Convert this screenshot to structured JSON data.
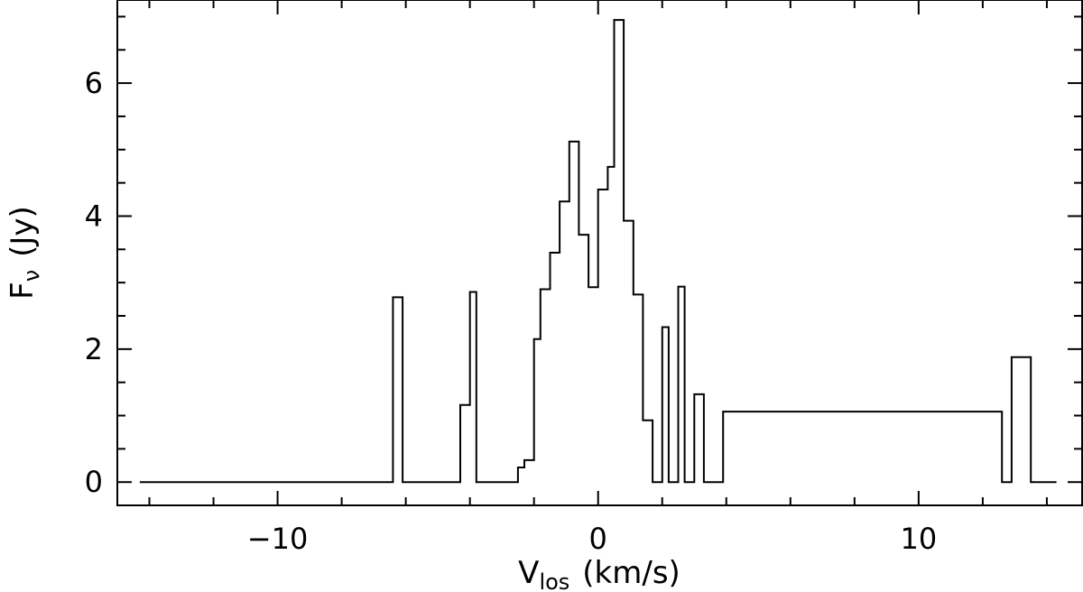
{
  "chart_data": {
    "type": "line",
    "style": "step histogram",
    "xlabel_main": "V",
    "xlabel_sub": "los",
    "xlabel_units": "(km/s)",
    "ylabel_main": "F",
    "ylabel_sub": "ν",
    "ylabel_units": "(Jy)",
    "xlim": [
      -15,
      15.1
    ],
    "ylim": [
      -0.35,
      7.25
    ],
    "x_major_ticks": [
      -10,
      0,
      10
    ],
    "x_tick_labels": [
      "−10",
      "0",
      "10"
    ],
    "y_major_ticks": [
      0,
      2,
      4,
      6
    ],
    "y_tick_labels": [
      "0",
      "2",
      "4",
      "6"
    ],
    "series": [
      {
        "step_x": [
          -14.3,
          -6.4,
          -6.1,
          -4.3,
          -4.0,
          -3.8,
          -3.5,
          -2.5,
          -2.3,
          -2.0,
          -1.8,
          -1.5,
          -1.2,
          -0.9,
          -0.6,
          -0.3,
          0.0,
          0.3,
          0.5,
          0.8,
          1.1,
          1.4,
          1.7,
          2.0,
          2.2,
          2.5,
          2.7,
          3.0,
          3.3,
          3.6,
          3.9,
          12.6,
          12.9,
          13.5,
          13.7,
          14.3
        ],
        "step_y": [
          0,
          2.78,
          0,
          1.16,
          2.86,
          0,
          0,
          0.22,
          0.33,
          2.15,
          2.9,
          3.45,
          4.22,
          5.12,
          3.72,
          2.93,
          4.4,
          4.74,
          6.95,
          3.93,
          2.82,
          0.93,
          0,
          2.33,
          0,
          2.94,
          0,
          1.32,
          0,
          0,
          1.06,
          0,
          1.88,
          0,
          0
        ]
      }
    ]
  }
}
